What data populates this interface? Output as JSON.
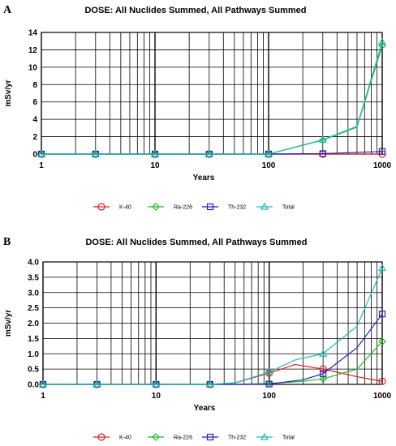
{
  "colors": {
    "K-40": "#dd2222",
    "Ra-226": "#22bb22",
    "Th-232": "#2222bb",
    "Total": "#22bbbb",
    "grid": "#000000",
    "background": "#ffffff"
  },
  "chart_data": [
    {
      "panel": "A",
      "type": "line",
      "title": "DOSE: All Nuclides Summed, All Pathways Summed",
      "xlabel": "Years",
      "ylabel": "mSv/yr",
      "xscale": "log",
      "xlim": [
        1,
        1000
      ],
      "ylim": [
        0,
        14
      ],
      "yticks": [
        0,
        2,
        4,
        6,
        8,
        10,
        12,
        14
      ],
      "ytick_labels": [
        "0",
        "2",
        "4",
        "6",
        "8",
        "10",
        "12",
        "14"
      ],
      "xticks": [
        1,
        10,
        100,
        1000
      ],
      "xtick_labels": [
        "1",
        "10",
        "100",
        "1000"
      ],
      "grid": true,
      "legend": "bottom",
      "series": [
        {
          "name": "K-40",
          "x": [
            1,
            3,
            10,
            30,
            100,
            300,
            1000
          ],
          "y": [
            0,
            0,
            0,
            0,
            0,
            0,
            0
          ],
          "markers_x": [
            1,
            3,
            10,
            30,
            100,
            300,
            1000
          ]
        },
        {
          "name": "Ra-226",
          "x": [
            1,
            3,
            10,
            30,
            100,
            300,
            600,
            1000
          ],
          "y": [
            0,
            0,
            0,
            0,
            0,
            1.6,
            3.1,
            12.5
          ],
          "markers_x": [
            1,
            3,
            10,
            30,
            100,
            300,
            1000
          ]
        },
        {
          "name": "Th-232",
          "x": [
            1,
            3,
            10,
            30,
            100,
            300,
            1000
          ],
          "y": [
            0,
            0,
            0,
            0,
            0,
            0.05,
            0.3
          ],
          "markers_x": [
            1,
            3,
            10,
            30,
            100,
            300,
            1000
          ]
        },
        {
          "name": "Total",
          "x": [
            1,
            3,
            10,
            30,
            100,
            300,
            600,
            1000
          ],
          "y": [
            0,
            0,
            0,
            0,
            0,
            1.65,
            3.2,
            12.9
          ],
          "markers_x": [
            1,
            3,
            10,
            30,
            100,
            300,
            1000
          ]
        }
      ]
    },
    {
      "panel": "B",
      "type": "line",
      "title": "DOSE: All Nuclides Summed, All Pathways Summed",
      "xlabel": "Years",
      "ylabel": "mSv/yr",
      "xscale": "log",
      "xlim": [
        1,
        1000
      ],
      "ylim": [
        0,
        4
      ],
      "yticks": [
        0,
        0.5,
        1,
        1.5,
        2,
        2.5,
        3,
        3.5,
        4
      ],
      "ytick_labels": [
        "0.0",
        "0.5",
        "1.0",
        "1.5",
        "2.0",
        "2.5",
        "3.0",
        "3.5",
        "4.0"
      ],
      "xticks": [
        1,
        10,
        100,
        1000
      ],
      "xtick_labels": [
        "1",
        "10",
        "100",
        "1000"
      ],
      "grid": true,
      "legend": "bottom",
      "series": [
        {
          "name": "K-40",
          "x": [
            1,
            3,
            10,
            30,
            50,
            100,
            170,
            300,
            600,
            1000
          ],
          "y": [
            0,
            0,
            0,
            0,
            0.05,
            0.37,
            0.65,
            0.5,
            0.25,
            0.1
          ],
          "markers_x": [
            1,
            3,
            10,
            30,
            100,
            300,
            1000
          ]
        },
        {
          "name": "Ra-226",
          "x": [
            1,
            3,
            10,
            30,
            50,
            100,
            200,
            300,
            600,
            1000
          ],
          "y": [
            0,
            0,
            0,
            0,
            0,
            0.03,
            0.1,
            0.18,
            0.5,
            1.4
          ],
          "markers_x": [
            1,
            3,
            10,
            30,
            100,
            300,
            1000
          ]
        },
        {
          "name": "Th-232",
          "x": [
            1,
            3,
            10,
            30,
            60,
            100,
            200,
            300,
            600,
            1000
          ],
          "y": [
            0,
            0,
            0,
            0,
            0,
            0.01,
            0.15,
            0.35,
            1.2,
            2.3
          ],
          "markers_x": [
            1,
            3,
            10,
            30,
            100,
            300,
            1000
          ]
        },
        {
          "name": "Total",
          "x": [
            1,
            3,
            10,
            30,
            50,
            100,
            170,
            300,
            600,
            1000
          ],
          "y": [
            0,
            0,
            0,
            0,
            0.05,
            0.4,
            0.8,
            1.0,
            1.9,
            3.8
          ],
          "markers_x": [
            1,
            3,
            10,
            30,
            100,
            300,
            1000
          ]
        }
      ]
    }
  ],
  "legend_items": [
    {
      "name": "K-40",
      "marker": "circle"
    },
    {
      "name": "Ra-226",
      "marker": "diamond"
    },
    {
      "name": "Th-232",
      "marker": "square"
    },
    {
      "name": "Total",
      "marker": "triangle"
    }
  ]
}
